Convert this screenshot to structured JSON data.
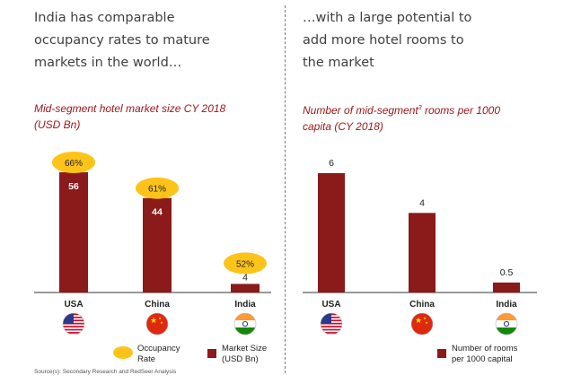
{
  "left": {
    "heading": [
      "India has comparable",
      "occupancy rates to mature",
      "markets in the world…"
    ],
    "subtitle": [
      "Mid-segment hotel market size CY 2018",
      "(USD Bn)"
    ]
  },
  "right": {
    "heading": [
      "…with a large potential to",
      "add more hotel rooms to",
      "the market"
    ],
    "subtitle_pre": "Number of  mid-segment",
    "subtitle_sup": "3",
    "subtitle_post": " rooms per 1000",
    "subtitle_line2": "capita (CY 2018)"
  },
  "chart_data": [
    {
      "type": "bar",
      "categories": [
        "USA",
        "China",
        "India"
      ],
      "series": [
        {
          "name": "Market Size (USD Bn)",
          "values": [
            56,
            44,
            4
          ]
        },
        {
          "name": "Occupancy Rate",
          "values": [
            "66%",
            "61%",
            "52%"
          ]
        }
      ],
      "ylim": [
        0,
        60
      ],
      "colors": {
        "bar": "#8b1a1a",
        "occupancy": "#fcc419"
      }
    },
    {
      "type": "bar",
      "categories": [
        "USA",
        "China",
        "India"
      ],
      "series": [
        {
          "name": "Number of rooms per 1000 capital",
          "values": [
            6,
            4,
            0.5
          ]
        }
      ],
      "ylim": [
        0,
        6.5
      ],
      "colors": {
        "bar": "#8b1a1a"
      }
    }
  ],
  "legend": {
    "occupancy": [
      "Occupancy",
      "Rate"
    ],
    "market_size": [
      "Market Size",
      "(USD Bn)"
    ],
    "rooms": [
      "Number of rooms",
      "per 1000 capital"
    ]
  },
  "flags": [
    "us-flag-icon",
    "china-flag-icon",
    "india-flag-icon"
  ],
  "source": "Source(s): Secondary Research and RedSeer Analysis"
}
